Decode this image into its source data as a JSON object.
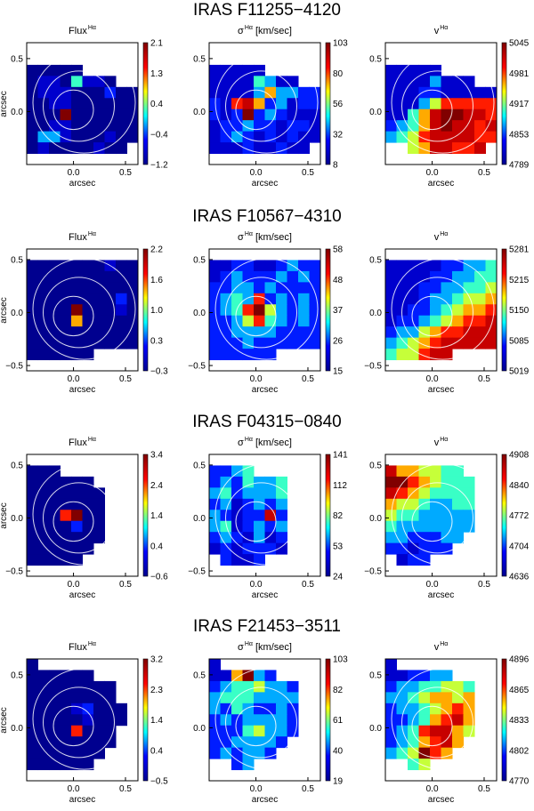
{
  "figure": {
    "rows": [
      {
        "title": "IRAS F11255−4120",
        "panels": [
          {
            "name": "Flux",
            "sup": "Hα",
            "unit": "",
            "cbar_ticks": [
              "2.1",
              "1.3",
              "0.4",
              "−0.4",
              "−1.2"
            ],
            "xlabel": "arcsec",
            "ylabel": "arcsec",
            "xticks": [
              "0.0",
              "0.5"
            ],
            "yticks": [
              "0.5",
              "0.0"
            ]
          },
          {
            "name": "σ",
            "sup": "Hα",
            "unit": "[km/sec]",
            "cbar_ticks": [
              "103",
              "80",
              "56",
              "32",
              "8"
            ],
            "xlabel": "arcsec",
            "ylabel": "",
            "xticks": [
              "0.0",
              "0.5"
            ],
            "yticks": [
              "0.5",
              "0.0"
            ]
          },
          {
            "name": "v",
            "sup": "Hα",
            "unit": "",
            "cbar_ticks": [
              "5045",
              "4981",
              "4917",
              "4853",
              "4789"
            ],
            "xlabel": "arcsec",
            "ylabel": "",
            "xticks": [
              "0.0",
              "0.5"
            ],
            "yticks": [
              "0.5",
              "0.0"
            ]
          }
        ]
      },
      {
        "title": "IRAS F10567−4310",
        "panels": [
          {
            "name": "Flux",
            "sup": "Hα",
            "unit": "",
            "cbar_ticks": [
              "2.2",
              "1.6",
              "1.0",
              "0.3",
              "−0.3"
            ],
            "xlabel": "arcsec",
            "ylabel": "arcsec",
            "xticks": [
              "0.0",
              "0.5"
            ],
            "yticks": [
              "0.5",
              "0.0",
              "−0.5"
            ]
          },
          {
            "name": "σ",
            "sup": "Hα",
            "unit": "[km/sec]",
            "cbar_ticks": [
              "58",
              "48",
              "37",
              "26",
              "15"
            ],
            "xlabel": "arcsec",
            "ylabel": "",
            "xticks": [
              "0.0",
              "0.5"
            ],
            "yticks": [
              "0.5",
              "0.0",
              "−0.5"
            ]
          },
          {
            "name": "v",
            "sup": "Hα",
            "unit": "",
            "cbar_ticks": [
              "5281",
              "5215",
              "5150",
              "5085",
              "5019"
            ],
            "xlabel": "arcsec",
            "ylabel": "",
            "xticks": [
              "0.0",
              "0.5"
            ],
            "yticks": [
              "0.5",
              "0.0",
              "−0.5"
            ]
          }
        ]
      },
      {
        "title": "IRAS F04315−0840",
        "panels": [
          {
            "name": "Flux",
            "sup": "Hα",
            "unit": "",
            "cbar_ticks": [
              "3.4",
              "2.4",
              "1.4",
              "0.4",
              "−0.6"
            ],
            "xlabel": "arcsec",
            "ylabel": "arcsec",
            "xticks": [
              "0.0",
              "0.5"
            ],
            "yticks": [
              "0.5",
              "0.0",
              "−0.5"
            ]
          },
          {
            "name": "σ",
            "sup": "Hα",
            "unit": "[km/sec]",
            "cbar_ticks": [
              "141",
              "112",
              "82",
              "53",
              "24"
            ],
            "xlabel": "arcsec",
            "ylabel": "",
            "xticks": [
              "0.0",
              "0.5"
            ],
            "yticks": [
              "0.5",
              "0.0",
              "−0.5"
            ]
          },
          {
            "name": "v",
            "sup": "Hα",
            "unit": "",
            "cbar_ticks": [
              "4908",
              "4840",
              "4772",
              "4704",
              "4636"
            ],
            "xlabel": "arcsec",
            "ylabel": "",
            "xticks": [
              "0.0",
              "0.5"
            ],
            "yticks": [
              "0.5",
              "0.0",
              "−0.5"
            ]
          }
        ]
      },
      {
        "title": "IRAS F21453−3511",
        "panels": [
          {
            "name": "Flux",
            "sup": "Hα",
            "unit": "",
            "cbar_ticks": [
              "3.2",
              "2.3",
              "1.4",
              "0.4",
              "−0.5"
            ],
            "xlabel": "arcsec",
            "ylabel": "arcsec",
            "xticks": [
              "0.0",
              "0.5"
            ],
            "yticks": [
              "0.5",
              "0.0"
            ]
          },
          {
            "name": "σ",
            "sup": "Hα",
            "unit": "[km/sec]",
            "cbar_ticks": [
              "103",
              "82",
              "61",
              "40",
              "19"
            ],
            "xlabel": "arcsec",
            "ylabel": "",
            "xticks": [
              "0.0",
              "0.5"
            ],
            "yticks": [
              "0.5",
              "0.0"
            ]
          },
          {
            "name": "v",
            "sup": "Hα",
            "unit": "",
            "cbar_ticks": [
              "4896",
              "4865",
              "4833",
              "4802",
              "4770"
            ],
            "xlabel": "arcsec",
            "ylabel": "",
            "xticks": [
              "0.0",
              "0.5"
            ],
            "yticks": [
              "0.5",
              "0.0"
            ]
          }
        ]
      }
    ]
  },
  "chart_data": {
    "type": "heatmap",
    "colormap": [
      "#00008f",
      "#0000ff",
      "#00ffff",
      "#ffff00",
      "#ff0000",
      "#800000"
    ],
    "contour_color": "#ffffff",
    "maps": [
      {
        "galaxy": "IRAS F11255−4120",
        "quantity": "Flux Hα",
        "range": [
          -1.2,
          2.1
        ],
        "xlim": [
          -0.45,
          0.62
        ],
        "ylim": [
          -0.5,
          0.65
        ],
        "grid": [
          "..........",
          "..........",
          "AAAAA.....",
          "ABBAEBBA..",
          "ABBBAAACAA",
          "AABBAAAAAA",
          "AAAJAAAAAA",
          "AABBAAAAAA",
          "ADDBAAABAA",
          "ABAAAABAA.",
          ".........."
        ]
      },
      {
        "galaxy": "IRAS F11255−4120",
        "quantity": "σ Hα [km/sec]",
        "range": [
          8,
          103
        ],
        "xlim": [
          -0.45,
          0.62
        ],
        "ylim": [
          -0.5,
          0.65
        ],
        "grid": [
          "..........",
          "..........",
          "BBBBB.....",
          "BBBBEDBB..",
          "BBBBDGDDCC",
          "CBHIGCDBCC",
          "CBCJCDCBBB",
          "BCCDCCBCCB",
          "BCDCBCBCBB",
          "BBBCBBCBB.",
          ".........."
        ]
      },
      {
        "galaxy": "IRAS F11255−4120",
        "quantity": "v Hα",
        "range": [
          4789,
          5045
        ],
        "xlim": [
          -0.45,
          0.62
        ],
        "ylim": [
          -0.5,
          0.65
        ],
        "grid": [
          "..........",
          "..........",
          "BBBBB.....",
          "BBBBDBBB..",
          "BBBCCBBBBB",
          "BBBDFHHHHH",
          "BBEGIJJIIH",
          "CDEGIJIIHI",
          "DEFHIIIIHH",
          "..FGIIHHI.",
          ".........."
        ]
      },
      {
        "galaxy": "IRAS F10567−4310",
        "quantity": "Flux Hα",
        "range": [
          -0.3,
          2.2
        ],
        "xlim": [
          -0.45,
          0.62
        ],
        "ylim": [
          -0.55,
          0.6
        ],
        "grid": [
          "..........",
          "AAAAAAABAA",
          "AAAAAAAAAA",
          "AAAAAAAAAA",
          "AAAAAAAACA",
          "AAAAJAAABA",
          "AAAAGAAAAA",
          "AAAAAAAAAA",
          "AAAAAAAAAA",
          "AAAAAA....",
          ".........."
        ]
      },
      {
        "galaxy": "IRAS F10567−4310",
        "quantity": "σ Hα [km/sec]",
        "range": [
          15,
          58
        ],
        "xlim": [
          -0.45,
          0.62
        ],
        "ylim": [
          -0.55,
          0.6
        ],
        "grid": [
          "..........",
          "BBCCBBCDCC",
          "BCDCCCDCDC",
          "CCDDCDCCCC",
          "CDEDHCDCDC",
          "CDEHJFDCDC",
          "CCDFHEDCDC",
          "CCDDDDCCCC",
          "CCCDCCCCCC",
          "CCCCCC....",
          ".........."
        ]
      },
      {
        "galaxy": "IRAS F10567−4310",
        "quantity": "v Hα",
        "range": [
          5019,
          5281
        ],
        "xlim": [
          -0.45,
          0.62
        ],
        "ylim": [
          -0.55,
          0.6
        ],
        "grid": [
          "..........",
          "BBBBBCCDDE",
          "BBBBCCDDEE",
          "BBBCCDDEEF",
          "BBBCDDEFFG",
          "BBCCDEFGGH",
          "BCCDEFGHHI",
          "CDDFGHHIII",
          "DEFGHIIIII",
          "EFFHII....",
          ".........."
        ]
      },
      {
        "galaxy": "IRAS F04315−0840",
        "quantity": "Flux Hα",
        "range": [
          -0.6,
          3.4
        ],
        "xlim": [
          -0.45,
          0.62
        ],
        "ylim": [
          -0.55,
          0.6
        ],
        "grid": [
          "..........",
          "AAA.......",
          "AAAAAA....",
          "AAAAAAA...",
          "AAAAAAA...",
          "AAAHJAA...",
          "AAAACAA...",
          "AAAAAAA...",
          "AAAAAA....",
          "AAAAA.....",
          ".........."
        ]
      },
      {
        "galaxy": "IRAS F04315−0840",
        "quantity": "σ Hα [km/sec]",
        "range": [
          24,
          141
        ],
        "xlim": [
          -0.45,
          0.62
        ],
        "ylim": [
          -0.55,
          0.6
        ],
        "grid": [
          "..........",
          "CCDE......",
          "CDCEDDE...",
          "DECDDDE...",
          "CDBCDCD...",
          "DCBCCIC...",
          "DEBCDCD...",
          "CDCBDBC...",
          "BCBCCCB...",
          ".CBBC.....",
          ".........."
        ]
      },
      {
        "galaxy": "IRAS F04315−0840",
        "quantity": "v Hα",
        "range": [
          4636,
          4908
        ],
        "xlim": [
          -0.45,
          0.62
        ],
        "ylim": [
          -0.55,
          0.6
        ],
        "grid": [
          "..........",
          "IGGFFEE...",
          "JJHGFEEE..",
          "IHGFEEEE..",
          "GFFEDDEE..",
          "FEEDDDDD..",
          "EDDDDDDD..",
          "DDCCCDD...",
          "CCBCCC....",
          ".BCC......",
          ".........."
        ]
      },
      {
        "galaxy": "IRAS F21453−3511",
        "quantity": "Flux Hα",
        "range": [
          -0.5,
          3.2
        ],
        "xlim": [
          -0.45,
          0.62
        ],
        "ylim": [
          -0.5,
          0.65
        ],
        "grid": [
          "A.........",
          "AAAAAA....",
          "AAAAAAAA..",
          "AAAAAAAA..",
          "AAAABCAAA.",
          "AAAAABAAA.",
          "AAAAHAAA..",
          "AAAAAAAA..",
          "AAAAAAA...",
          "AAAAAA....",
          ".........."
        ]
      },
      {
        "galaxy": "IRAS F21453−3511",
        "quantity": "σ Hα [km/sec]",
        "range": [
          19,
          103
        ],
        "xlim": [
          -0.45,
          0.62
        ],
        "ylim": [
          -0.5,
          0.65
        ],
        "grid": [
          "B.........",
          "BBGJDC....",
          "CDEEFDDC..",
          "DEEEDDDD..",
          "DCEDCCDC..",
          "CDCDDDDC..",
          "CCCEFDDC..",
          "CCDDDDC...",
          "CDCDDC....",
          "..CD......",
          ".........."
        ]
      },
      {
        "galaxy": "IRAS F21453−3511",
        "quantity": "v Hα",
        "range": [
          4770,
          4896
        ],
        "xlim": [
          -0.45,
          0.62
        ],
        "ylim": [
          -0.5,
          0.65
        ],
        "grid": [
          "B.........",
          "BBCCDD....",
          "CDDEEFFE..",
          "DDEFGGFG..",
          "CDDEFGHG..",
          "CCDEGHIG..",
          "CDEHIIGF..",
          "CDEGHIG...",
          "DEFJHG....",
          "..EF......",
          ".........."
        ]
      }
    ]
  }
}
